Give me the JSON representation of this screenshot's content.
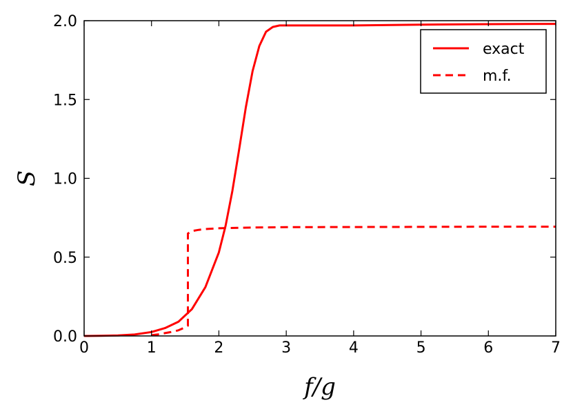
{
  "chart_data": {
    "type": "line",
    "xlabel": "f/g",
    "ylabel": "S",
    "xlim": [
      0,
      7
    ],
    "ylim": [
      0,
      2
    ],
    "xticks": [
      "0",
      "1",
      "2",
      "3",
      "4",
      "5",
      "6",
      "7"
    ],
    "yticks": [
      "0.0",
      "0.5",
      "1.0",
      "1.5",
      "2.0"
    ],
    "grid": false,
    "legend_position": "top-right",
    "series": [
      {
        "name": "exact",
        "style": "solid",
        "color": "#ff0000",
        "x": [
          0,
          0.25,
          0.5,
          0.75,
          1.0,
          1.2,
          1.4,
          1.6,
          1.8,
          2.0,
          2.1,
          2.2,
          2.3,
          2.4,
          2.5,
          2.6,
          2.7,
          2.8,
          2.9,
          3.0,
          3.5,
          4.0,
          5.0,
          6.0,
          7.0
        ],
        "y": [
          0.0,
          0.001,
          0.003,
          0.009,
          0.025,
          0.05,
          0.09,
          0.17,
          0.31,
          0.53,
          0.7,
          0.92,
          1.18,
          1.45,
          1.68,
          1.84,
          1.93,
          1.96,
          1.97,
          1.97,
          1.97,
          1.97,
          1.975,
          1.978,
          1.98
        ]
      },
      {
        "name": "m.f.",
        "style": "dashed",
        "color": "#ff0000",
        "x": [
          1.0,
          1.1,
          1.2,
          1.3,
          1.4,
          1.5,
          1.54,
          1.54,
          1.6,
          1.7,
          1.8,
          2.0,
          2.5,
          3.0,
          4.0,
          5.0,
          6.0,
          7.0
        ],
        "y": [
          0.005,
          0.01,
          0.018,
          0.026,
          0.036,
          0.055,
          0.065,
          0.65,
          0.665,
          0.673,
          0.678,
          0.683,
          0.688,
          0.69,
          0.691,
          0.692,
          0.693,
          0.693
        ]
      }
    ]
  }
}
